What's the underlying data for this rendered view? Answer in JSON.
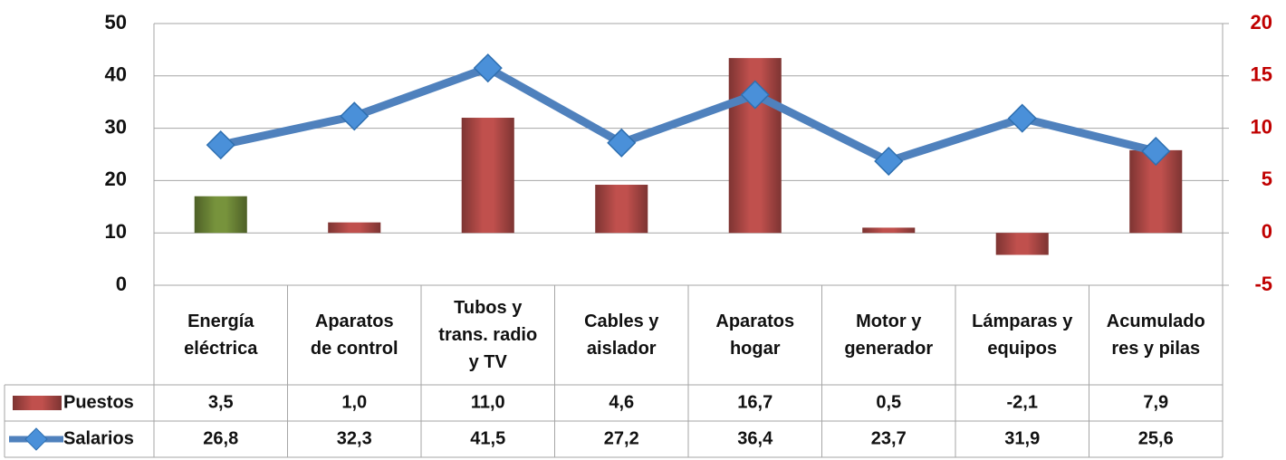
{
  "chart_data": {
    "type": "bar_line",
    "categories": [
      "Energía\neléctrica",
      "Aparatos\nde control",
      "Tubos y\ntrans. radio\ny TV",
      "Cables y\naislador",
      "Aparatos\nhogar",
      "Motor y\ngenerador",
      "Lámparas y\nequipos",
      "Acumulado\nres y pilas"
    ],
    "series": [
      {
        "name": "Puestos",
        "type": "bar",
        "axis": "y2",
        "color": "#c0504d",
        "colors": [
          "#77933c",
          "#c0504d",
          "#c0504d",
          "#c0504d",
          "#c0504d",
          "#c0504d",
          "#c0504d",
          "#c0504d"
        ],
        "values": [
          3.5,
          1.0,
          11.0,
          4.6,
          16.7,
          0.5,
          -2.1,
          7.9
        ],
        "value_labels": [
          "3,5",
          "1,0",
          "11,0",
          "4,6",
          "16,7",
          "0,5",
          "-2,1",
          "7,9"
        ]
      },
      {
        "name": "Salarios",
        "type": "line",
        "axis": "y",
        "color": "#4f81bd",
        "values": [
          26.8,
          32.3,
          41.5,
          27.2,
          36.4,
          23.7,
          31.9,
          25.6
        ],
        "value_labels": [
          "26,8",
          "32,3",
          "41,5",
          "27,2",
          "36,4",
          "23,7",
          "31,9",
          "25,6"
        ]
      }
    ],
    "ylim": [
      0,
      50
    ],
    "yticks": [
      0,
      10,
      20,
      30,
      40,
      50
    ],
    "y2lim": [
      -5,
      20
    ],
    "y2ticks": [
      -5,
      0,
      5,
      10,
      15,
      20
    ],
    "y2_color": "#c00000",
    "grid": true
  }
}
